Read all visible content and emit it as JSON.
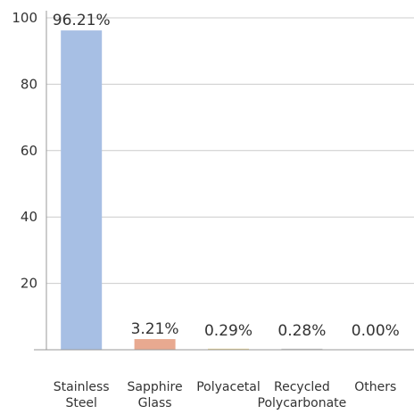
{
  "chart_data": {
    "type": "bar",
    "categories": [
      [
        "Stainless",
        "Steel"
      ],
      [
        "Sapphire",
        "Glass"
      ],
      [
        "Polyacetal"
      ],
      [
        "Recycled",
        "Polycarbonate"
      ],
      [
        "Others"
      ]
    ],
    "values": [
      96.21,
      3.21,
      0.29,
      0.28,
      0.0
    ],
    "data_labels": [
      "96.21%",
      "3.21%",
      "0.29%",
      "0.28%",
      "0.00%"
    ],
    "bar_colors": [
      "#a7bfe4",
      "#e8a990",
      "#e4cf8f",
      "#c9c9c9",
      "#c9c9c9"
    ],
    "ylim": [
      0,
      100
    ],
    "yticks": [
      20,
      40,
      60,
      80,
      100
    ],
    "grid": true,
    "title": "",
    "xlabel": "",
    "ylabel": ""
  }
}
